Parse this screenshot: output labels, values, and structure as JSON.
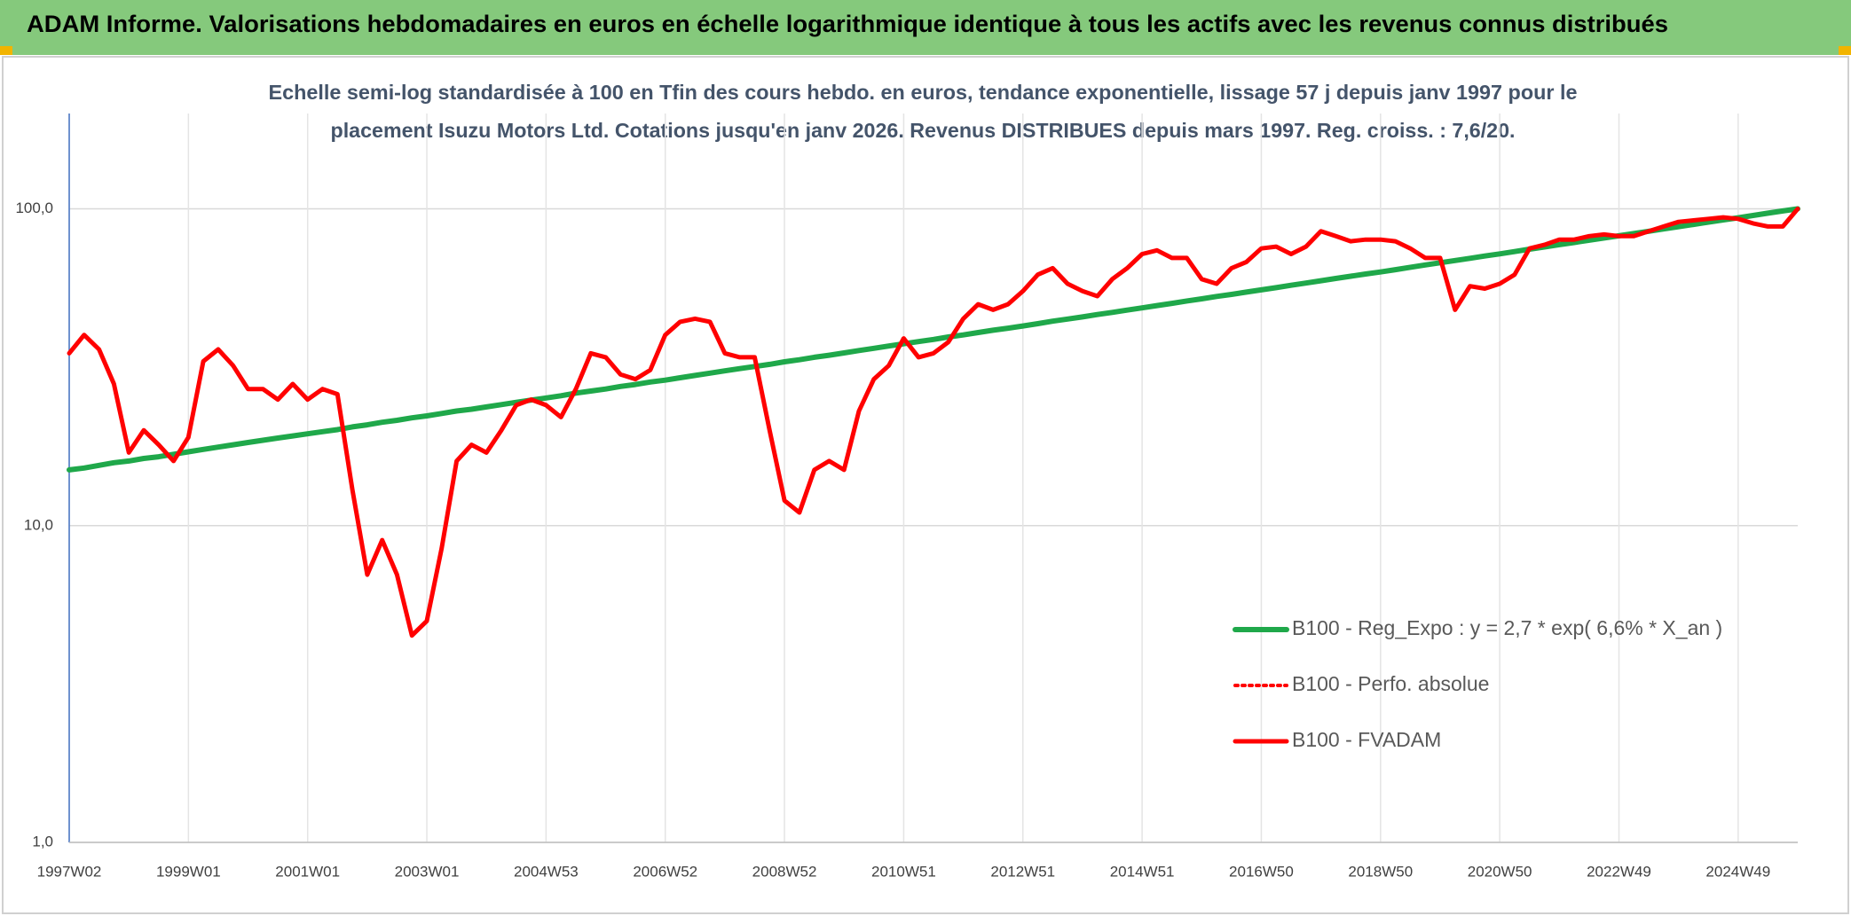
{
  "chart_data": {
    "type": "line",
    "title": "ADAM Informe. Valorisations hebdomadaires en euros en échelle logarithmique identique à tous les actifs avec les revenus connus distribués",
    "subtitle": [
      "Echelle semi-log standardisée à 100 en Tfin des cours hebdo. en euros, tendance exponentielle, lissage 57 j depuis janv 1997 pour le",
      "placement Isuzu Motors Ltd. Cotations jusqu'en janv 2026. Revenus DISTRIBUES depuis mars 1997. Reg. croiss. : 7,6/20."
    ],
    "log_y": true,
    "grid": true,
    "ylim": [
      1,
      200
    ],
    "yticks": [
      {
        "value": 1,
        "label": "1,0"
      },
      {
        "value": 10,
        "label": "10,0"
      },
      {
        "value": 100,
        "label": "100,0"
      }
    ],
    "categories": [
      "1997W02",
      null,
      null,
      null,
      null,
      null,
      null,
      null,
      "1999W01",
      null,
      null,
      null,
      null,
      null,
      null,
      null,
      "2001W01",
      null,
      null,
      null,
      null,
      null,
      null,
      null,
      "2003W01",
      null,
      null,
      null,
      null,
      null,
      null,
      null,
      "2004W53",
      null,
      null,
      null,
      null,
      null,
      null,
      null,
      "2006W52",
      null,
      null,
      null,
      null,
      null,
      null,
      null,
      "2008W52",
      null,
      null,
      null,
      null,
      null,
      null,
      null,
      "2010W51",
      null,
      null,
      null,
      null,
      null,
      null,
      null,
      "2012W51",
      null,
      null,
      null,
      null,
      null,
      null,
      null,
      "2014W51",
      null,
      null,
      null,
      null,
      null,
      null,
      null,
      "2016W50",
      null,
      null,
      null,
      null,
      null,
      null,
      null,
      "2018W50",
      null,
      null,
      null,
      null,
      null,
      null,
      null,
      "2020W50",
      null,
      null,
      null,
      null,
      null,
      null,
      null,
      "2022W49",
      null,
      null,
      null,
      null,
      null,
      null,
      null,
      "2024W49",
      null,
      null,
      null,
      null
    ],
    "series": [
      {
        "name": "B100 - Reg_Expo : y = 2,7 * exp( 6,6% *  X_an )",
        "color": "#1fa84a",
        "style": "solid",
        "values": [
          15.0,
          15.2,
          15.5,
          15.8,
          16.0,
          16.3,
          16.5,
          16.8,
          17.1,
          17.4,
          17.7,
          18.0,
          18.3,
          18.6,
          18.9,
          19.2,
          19.5,
          19.8,
          20.1,
          20.5,
          20.8,
          21.2,
          21.5,
          21.9,
          22.2,
          22.6,
          23.0,
          23.3,
          23.7,
          24.1,
          24.5,
          24.9,
          25.3,
          25.7,
          26.2,
          26.6,
          27.0,
          27.5,
          27.9,
          28.4,
          28.8,
          29.3,
          29.8,
          30.3,
          30.8,
          31.3,
          31.8,
          32.3,
          32.9,
          33.4,
          34.0,
          34.5,
          35.1,
          35.7,
          36.3,
          36.9,
          37.5,
          38.1,
          38.7,
          39.4,
          40.0,
          40.7,
          41.4,
          42.0,
          42.7,
          43.4,
          44.2,
          44.9,
          45.6,
          46.4,
          47.1,
          47.9,
          48.7,
          49.5,
          50.3,
          51.2,
          52.0,
          52.9,
          53.7,
          54.6,
          55.5,
          56.4,
          57.4,
          58.3,
          59.3,
          60.3,
          61.3,
          62.3,
          63.2,
          64.3,
          65.4,
          66.5,
          67.6,
          68.7,
          69.8,
          71.0,
          72.1,
          73.3,
          74.6,
          75.8,
          77.1,
          78.3,
          79.6,
          80.9,
          82.2,
          83.6,
          85.0,
          86.4,
          87.8,
          89.3,
          90.8,
          92.3,
          93.7,
          95.3,
          96.9,
          98.5,
          100.0
        ]
      },
      {
        "name": "B100 - Perfo. absolue",
        "color": "#ff0000",
        "style": "dotted",
        "values": [
          35,
          40,
          36,
          28,
          17,
          20,
          18,
          16,
          19,
          33,
          36,
          32,
          27,
          27,
          25,
          28,
          25,
          27,
          26,
          13,
          7,
          9,
          7,
          4.5,
          5,
          8.5,
          16,
          18,
          17,
          20,
          24,
          25,
          24,
          22,
          27,
          35,
          34,
          30,
          29,
          31,
          40,
          44,
          45,
          44,
          35,
          34,
          34,
          20,
          12,
          11,
          15,
          16,
          15,
          23,
          29,
          32,
          39,
          34,
          35,
          38,
          45,
          50,
          48,
          50,
          55,
          62,
          65,
          58,
          55,
          53,
          60,
          65,
          72,
          74,
          70,
          70,
          60,
          58,
          65,
          68,
          75,
          76,
          72,
          76,
          85,
          82,
          79,
          80,
          80,
          79,
          75,
          70,
          70,
          48,
          57,
          56,
          58,
          62,
          75,
          77,
          80,
          80,
          82,
          83,
          82,
          82,
          85,
          88,
          91,
          92,
          93,
          94,
          93,
          90,
          88,
          88,
          100
        ]
      },
      {
        "name": "B100 - FVADAM",
        "color": "#ff0000",
        "style": "solid",
        "values": [
          35,
          40,
          36,
          28,
          17,
          20,
          18,
          16,
          19,
          33,
          36,
          32,
          27,
          27,
          25,
          28,
          25,
          27,
          26,
          13,
          7,
          9,
          7,
          4.5,
          5,
          8.5,
          16,
          18,
          17,
          20,
          24,
          25,
          24,
          22,
          27,
          35,
          34,
          30,
          29,
          31,
          40,
          44,
          45,
          44,
          35,
          34,
          34,
          20,
          12,
          11,
          15,
          16,
          15,
          23,
          29,
          32,
          39,
          34,
          35,
          38,
          45,
          50,
          48,
          50,
          55,
          62,
          65,
          58,
          55,
          53,
          60,
          65,
          72,
          74,
          70,
          70,
          60,
          58,
          65,
          68,
          75,
          76,
          72,
          76,
          85,
          82,
          79,
          80,
          80,
          79,
          75,
          70,
          70,
          48,
          57,
          56,
          58,
          62,
          75,
          77,
          80,
          80,
          82,
          83,
          82,
          82,
          85,
          88,
          91,
          92,
          93,
          94,
          93,
          90,
          88,
          88,
          100
        ]
      }
    ]
  }
}
